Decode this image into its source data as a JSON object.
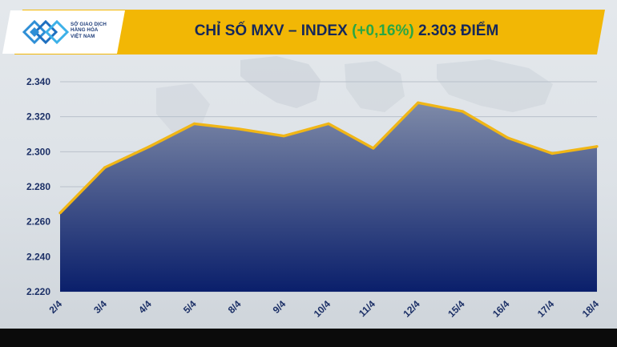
{
  "header": {
    "logo_lines": [
      "SỞ GIAO DỊCH",
      "HÀNG HÓA",
      "VIỆT NAM"
    ],
    "title_prefix": "CHỈ SỐ MXV – INDEX",
    "title_change": "(+0,16%)",
    "title_value": "2.303 ĐIỂM"
  },
  "colors": {
    "banner": "#f2b705",
    "title_text": "#16285a",
    "change_text": "#28a745",
    "line": "#f0b616",
    "area_top": "#7e8aa8",
    "area_bottom": "#0a1f6b"
  },
  "chart_data": {
    "type": "area",
    "title": "CHỈ SỐ MXV – INDEX (+0,16%) 2.303 ĐIỂM",
    "xlabel": "",
    "ylabel": "",
    "categories": [
      "2/4",
      "3/4",
      "4/4",
      "5/4",
      "8/4",
      "9/4",
      "10/4",
      "11/4",
      "12/4",
      "15/4",
      "16/4",
      "17/4",
      "18/4"
    ],
    "values": [
      2265,
      2291,
      2303,
      2316,
      2313,
      2309,
      2316,
      2302,
      2328,
      2323,
      2308,
      2299,
      2303
    ],
    "ylim": [
      2220,
      2340
    ],
    "yticks": [
      2220,
      2240,
      2260,
      2280,
      2300,
      2320,
      2340
    ],
    "ytick_labels": [
      "2.220",
      "2.240",
      "2.260",
      "2.280",
      "2.300",
      "2.320",
      "2.340"
    ],
    "grid": true
  }
}
